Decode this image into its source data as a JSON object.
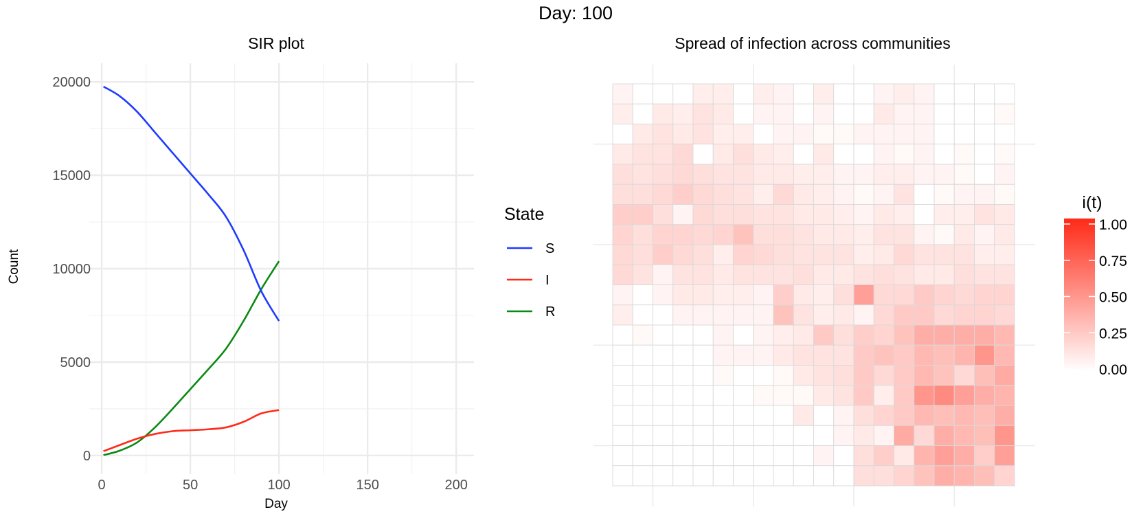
{
  "title": "Day: 100",
  "colors": {
    "S": "#1f3bff",
    "I": "#ff2a17",
    "R": "#0a8a12",
    "heat_low": "#ffffff",
    "heat_high": "#ff2a17"
  },
  "chart_data": [
    {
      "type": "line",
      "title": "SIR plot",
      "xlabel": "Day",
      "ylabel": "Count",
      "xlim": [
        -7,
        210
      ],
      "ylim": [
        -1000,
        21000
      ],
      "xticks": [
        0,
        50,
        100,
        150,
        200
      ],
      "yticks": [
        0,
        5000,
        10000,
        15000,
        20000
      ],
      "grid": true,
      "legend": {
        "title": "State",
        "position": "right",
        "entries": [
          "S",
          "I",
          "R"
        ]
      },
      "x": [
        1,
        10,
        20,
        30,
        40,
        50,
        60,
        70,
        80,
        90,
        100
      ],
      "series": [
        {
          "name": "S",
          "values": [
            19750,
            19250,
            18400,
            17300,
            16200,
            15100,
            14000,
            12800,
            11000,
            8800,
            7200
          ]
        },
        {
          "name": "I",
          "values": [
            230,
            550,
            900,
            1150,
            1300,
            1350,
            1400,
            1500,
            1800,
            2250,
            2430
          ]
        },
        {
          "name": "R",
          "values": [
            20,
            250,
            700,
            1500,
            2500,
            3550,
            4600,
            5700,
            7200,
            8900,
            10400
          ]
        }
      ]
    },
    {
      "type": "heatmap",
      "title": "Spread of infection across communities",
      "rows": 20,
      "cols": 20,
      "colorbar": {
        "title": "i(t)",
        "ticks": [
          "1.00",
          "0.75",
          "0.50",
          "0.25",
          "0.00"
        ],
        "range": [
          0,
          1
        ]
      },
      "values": [
        [
          0.05,
          0.0,
          0.0,
          0.0,
          0.08,
          0.08,
          0.0,
          0.08,
          0.05,
          0.0,
          0.08,
          0.0,
          0.0,
          0.05,
          0.08,
          0.05,
          0.0,
          0.0,
          0.0,
          0.0
        ],
        [
          0.08,
          0.0,
          0.1,
          0.08,
          0.13,
          0.1,
          0.0,
          0.05,
          0.05,
          0.0,
          0.05,
          0.0,
          0.0,
          0.1,
          0.05,
          0.05,
          0.0,
          0.0,
          0.0,
          0.03
        ],
        [
          0.0,
          0.1,
          0.13,
          0.1,
          0.13,
          0.08,
          0.08,
          0.0,
          0.05,
          0.05,
          0.03,
          0.03,
          0.05,
          0.05,
          0.05,
          0.05,
          0.0,
          0.0,
          0.0,
          0.0
        ],
        [
          0.1,
          0.13,
          0.13,
          0.18,
          0.0,
          0.1,
          0.15,
          0.1,
          0.08,
          0.0,
          0.1,
          0.0,
          0.0,
          0.05,
          0.03,
          0.05,
          0.0,
          0.03,
          0.0,
          0.03
        ],
        [
          0.15,
          0.13,
          0.15,
          0.18,
          0.15,
          0.13,
          0.13,
          0.1,
          0.1,
          0.08,
          0.08,
          0.05,
          0.05,
          0.08,
          0.08,
          0.05,
          0.05,
          0.03,
          0.0,
          0.05
        ],
        [
          0.15,
          0.15,
          0.18,
          0.23,
          0.18,
          0.15,
          0.13,
          0.08,
          0.18,
          0.1,
          0.08,
          0.05,
          0.03,
          0.05,
          0.13,
          0.0,
          0.03,
          0.05,
          0.05,
          0.03
        ],
        [
          0.23,
          0.23,
          0.15,
          0.05,
          0.18,
          0.15,
          0.15,
          0.13,
          0.13,
          0.1,
          0.1,
          0.08,
          0.05,
          0.1,
          0.08,
          0.0,
          0.08,
          0.08,
          0.13,
          0.1
        ],
        [
          0.2,
          0.15,
          0.2,
          0.2,
          0.18,
          0.2,
          0.28,
          0.15,
          0.15,
          0.13,
          0.1,
          0.1,
          0.08,
          0.13,
          0.13,
          0.05,
          0.03,
          0.1,
          0.05,
          0.1
        ],
        [
          0.18,
          0.15,
          0.23,
          0.18,
          0.15,
          0.08,
          0.2,
          0.18,
          0.15,
          0.13,
          0.13,
          0.13,
          0.08,
          0.1,
          0.18,
          0.13,
          0.13,
          0.13,
          0.08,
          0.08
        ],
        [
          0.18,
          0.13,
          0.05,
          0.13,
          0.13,
          0.1,
          0.13,
          0.13,
          0.13,
          0.15,
          0.1,
          0.1,
          0.13,
          0.15,
          0.13,
          0.1,
          0.1,
          0.15,
          0.13,
          0.13
        ],
        [
          0.05,
          0.0,
          0.05,
          0.1,
          0.1,
          0.08,
          0.08,
          0.05,
          0.23,
          0.1,
          0.08,
          0.15,
          0.45,
          0.18,
          0.18,
          0.25,
          0.2,
          0.18,
          0.2,
          0.2
        ],
        [
          0.08,
          0.0,
          0.0,
          0.05,
          0.05,
          0.05,
          0.05,
          0.05,
          0.28,
          0.13,
          0.08,
          0.1,
          0.05,
          0.18,
          0.25,
          0.25,
          0.18,
          0.2,
          0.2,
          0.18
        ],
        [
          0.0,
          0.03,
          0.0,
          0.0,
          0.0,
          0.05,
          0.0,
          0.05,
          0.08,
          0.1,
          0.25,
          0.15,
          0.23,
          0.2,
          0.28,
          0.38,
          0.38,
          0.38,
          0.38,
          0.33
        ],
        [
          0.0,
          0.0,
          0.0,
          0.0,
          0.0,
          0.05,
          0.05,
          0.05,
          0.1,
          0.13,
          0.13,
          0.13,
          0.25,
          0.28,
          0.25,
          0.33,
          0.3,
          0.35,
          0.5,
          0.33
        ],
        [
          0.0,
          0.0,
          0.0,
          0.0,
          0.0,
          0.03,
          0.0,
          0.0,
          0.03,
          0.1,
          0.13,
          0.15,
          0.25,
          0.18,
          0.25,
          0.33,
          0.28,
          0.18,
          0.3,
          0.4
        ],
        [
          0.0,
          0.0,
          0.0,
          0.0,
          0.0,
          0.0,
          0.0,
          0.03,
          0.03,
          0.03,
          0.1,
          0.13,
          0.25,
          0.08,
          0.25,
          0.5,
          0.55,
          0.45,
          0.38,
          0.35
        ],
        [
          0.0,
          0.0,
          0.0,
          0.0,
          0.0,
          0.0,
          0.0,
          0.0,
          0.0,
          0.1,
          0.0,
          0.05,
          0.15,
          0.2,
          0.25,
          0.33,
          0.3,
          0.33,
          0.3,
          0.38
        ],
        [
          0.0,
          0.0,
          0.0,
          0.0,
          0.0,
          0.0,
          0.0,
          0.0,
          0.0,
          0.0,
          0.0,
          0.05,
          0.1,
          0.05,
          0.4,
          0.18,
          0.38,
          0.33,
          0.3,
          0.5
        ],
        [
          0.0,
          0.0,
          0.0,
          0.0,
          0.0,
          0.0,
          0.0,
          0.0,
          0.0,
          0.0,
          0.05,
          0.0,
          0.15,
          0.23,
          0.1,
          0.35,
          0.45,
          0.38,
          0.23,
          0.45
        ],
        [
          0.0,
          0.0,
          0.0,
          0.0,
          0.0,
          0.0,
          0.0,
          0.0,
          0.0,
          0.0,
          0.0,
          0.0,
          0.15,
          0.15,
          0.2,
          0.28,
          0.38,
          0.35,
          0.3,
          0.2
        ]
      ]
    }
  ]
}
